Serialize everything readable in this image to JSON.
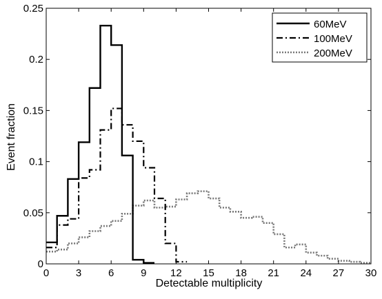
{
  "chart_data": {
    "type": "line",
    "style": "step-histogram",
    "title": "",
    "xlabel": "Detectable multiplicity",
    "ylabel": "Event fraction",
    "xlim": [
      0,
      30
    ],
    "ylim": [
      0,
      0.25
    ],
    "xticks": [
      0,
      3,
      6,
      9,
      12,
      15,
      18,
      21,
      24,
      27,
      30
    ],
    "yticks": [
      0,
      0.05,
      0.1,
      0.15,
      0.2,
      0.25
    ],
    "xtick_labels": [
      "0",
      "3",
      "6",
      "9",
      "12",
      "15",
      "18",
      "21",
      "24",
      "27",
      "30"
    ],
    "ytick_labels": [
      "0",
      "0.05",
      "0.1",
      "0.15",
      "0.2",
      "0.25"
    ],
    "grid": false,
    "legend": "top-right",
    "series": [
      {
        "name": "60MeV",
        "line_style": "solid",
        "color": "#000000",
        "bin_edges": [
          0,
          1,
          2,
          3,
          4,
          5,
          6,
          7,
          8,
          9,
          10
        ],
        "values": [
          0.021,
          0.047,
          0.083,
          0.119,
          0.172,
          0.233,
          0.214,
          0.106,
          0.004,
          0.001
        ]
      },
      {
        "name": "100MeV",
        "line_style": "dashdot",
        "color": "#000000",
        "bin_edges": [
          0,
          1,
          2,
          3,
          4,
          5,
          6,
          7,
          8,
          9,
          10,
          11,
          12,
          13
        ],
        "values": [
          0.016,
          0.038,
          0.044,
          0.084,
          0.092,
          0.131,
          0.152,
          0.136,
          0.12,
          0.094,
          0.064,
          0.02,
          0.002
        ]
      },
      {
        "name": "200MeV",
        "line_style": "dotted",
        "color": "#777777",
        "bin_edges": [
          0,
          1,
          2,
          3,
          4,
          5,
          6,
          7,
          8,
          9,
          10,
          11,
          12,
          13,
          14,
          15,
          16,
          17,
          18,
          19,
          20,
          21,
          22,
          23,
          24,
          25,
          26,
          27,
          28,
          29,
          30
        ],
        "values": [
          0.012,
          0.014,
          0.02,
          0.026,
          0.032,
          0.037,
          0.042,
          0.049,
          0.057,
          0.062,
          0.055,
          0.056,
          0.063,
          0.069,
          0.071,
          0.064,
          0.055,
          0.051,
          0.045,
          0.046,
          0.04,
          0.029,
          0.016,
          0.019,
          0.011,
          0.008,
          0.005,
          0.003,
          0.002,
          0.001
        ]
      }
    ]
  }
}
